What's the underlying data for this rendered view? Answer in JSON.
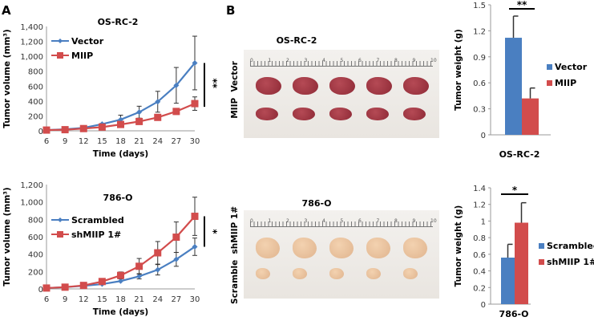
{
  "panel_labels": [
    "A",
    "B"
  ],
  "photos": [
    {
      "title": "OS-RC-2",
      "row_labels": "MIIP  Vector",
      "ruler_ticks": [
        "0",
        "1",
        "2",
        "3",
        "4",
        "5",
        "6",
        "7",
        "8",
        "9",
        "10"
      ],
      "color": "#8e2a36"
    },
    {
      "title": "786-O",
      "row_labels": "Scramble  shMIIP 1#",
      "ruler_ticks": [
        "0",
        "1",
        "2",
        "3",
        "4",
        "5",
        "6",
        "7",
        "8",
        "9",
        "10"
      ],
      "color": "#e0b48e"
    }
  ],
  "chart_data": [
    {
      "type": "line",
      "title": "OS-RC-2",
      "xlabel": "Time (days)",
      "ylabel": "Tumor volume (mm³)",
      "x": [
        6,
        9,
        12,
        15,
        18,
        21,
        24,
        27,
        30
      ],
      "ylim": [
        0,
        1400
      ],
      "yticks": [
        "0",
        "200",
        "400",
        "600",
        "800",
        "1,000",
        "1,200",
        "1,400"
      ],
      "significance": "**",
      "series": [
        {
          "name": "Vector",
          "color": "#4a7fc1",
          "marker": "diamond",
          "values": [
            10,
            20,
            40,
            90,
            150,
            250,
            390,
            610,
            910
          ],
          "errors": [
            0,
            0,
            0,
            10,
            60,
            80,
            140,
            240,
            360
          ]
        },
        {
          "name": "MIIP",
          "color": "#d24c4c",
          "marker": "square",
          "values": [
            10,
            15,
            30,
            50,
            85,
            125,
            180,
            260,
            365
          ],
          "errors": [
            0,
            0,
            0,
            0,
            0,
            0,
            0,
            40,
            90
          ]
        }
      ]
    },
    {
      "type": "line",
      "title": "786-O",
      "xlabel": "Time (days)",
      "ylabel": "Tumor volume (mm³)",
      "x": [
        6,
        9,
        12,
        15,
        18,
        21,
        24,
        27,
        30
      ],
      "ylim": [
        0,
        1200
      ],
      "yticks": [
        "0",
        "200",
        "400",
        "600",
        "800",
        "1,000",
        "1,200"
      ],
      "significance": "*",
      "series": [
        {
          "name": "Scrambled",
          "color": "#4a7fc1",
          "marker": "diamond",
          "values": [
            10,
            20,
            35,
            55,
            90,
            145,
            220,
            340,
            485
          ],
          "errors": [
            0,
            0,
            0,
            0,
            0,
            30,
            60,
            80,
            100
          ]
        },
        {
          "name": "shMIIP 1#",
          "color": "#d24c4c",
          "marker": "square",
          "values": [
            10,
            20,
            40,
            85,
            155,
            260,
            415,
            595,
            835
          ],
          "errors": [
            0,
            0,
            0,
            10,
            40,
            90,
            130,
            175,
            220
          ]
        }
      ]
    },
    {
      "type": "bar",
      "title": "",
      "xlabel": "OS-RC-2",
      "ylabel": "Tumor weight (g)",
      "ylim": [
        0,
        1.5
      ],
      "yticks": [
        "0",
        "0.3",
        "0.6",
        "0.9",
        "1.2",
        "1.5"
      ],
      "significance": "**",
      "series": [
        {
          "name": "Vector",
          "color": "#4a7fc1",
          "value": 1.12,
          "error": 0.25
        },
        {
          "name": "MIIP",
          "color": "#d24c4c",
          "value": 0.42,
          "error": 0.12
        }
      ]
    },
    {
      "type": "bar",
      "title": "",
      "xlabel": "786-O",
      "ylabel": "Tumor weight (g)",
      "ylim": [
        0,
        1.4
      ],
      "yticks": [
        "0",
        "0.2",
        "0.4",
        "0.6",
        "0.8",
        "1",
        "1.2",
        "1.4"
      ],
      "significance": "*",
      "series": [
        {
          "name": "Scrambled",
          "color": "#4a7fc1",
          "value": 0.56,
          "error": 0.16
        },
        {
          "name": "shMIIP 1#",
          "color": "#d24c4c",
          "value": 0.98,
          "error": 0.24
        }
      ]
    }
  ]
}
